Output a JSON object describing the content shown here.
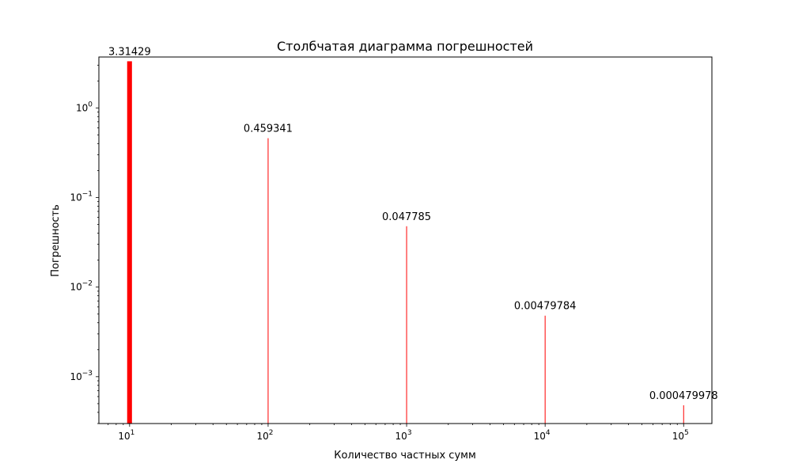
{
  "chart_data": {
    "type": "bar",
    "title": "Столбчатая диаграмма погрешностей",
    "xlabel": "Количество частных сумм",
    "ylabel": "Погрешность",
    "xscale": "log",
    "yscale": "log",
    "xlim": [
      6,
      160000
    ],
    "ylim": [
      0.0003,
      3.7
    ],
    "x": [
      10,
      100,
      1000,
      10000,
      100000
    ],
    "values": [
      3.31429,
      0.459341,
      0.047785,
      0.00479784,
      0.000479978
    ],
    "data_labels": [
      "3.31429",
      "0.459341",
      "0.047785",
      "0.00479784",
      "0.000479978"
    ],
    "bar_color": "#ff0000",
    "grid": false,
    "x_ticks": [
      {
        "value": 10,
        "base": "10",
        "exp": "1"
      },
      {
        "value": 100,
        "base": "10",
        "exp": "2"
      },
      {
        "value": 1000,
        "base": "10",
        "exp": "3"
      },
      {
        "value": 10000,
        "base": "10",
        "exp": "4"
      },
      {
        "value": 100000,
        "base": "10",
        "exp": "5"
      }
    ],
    "y_ticks": [
      {
        "value": 1,
        "base": "10",
        "exp": "0"
      },
      {
        "value": 0.1,
        "base": "10",
        "exp": "−1"
      },
      {
        "value": 0.01,
        "base": "10",
        "exp": "−2"
      },
      {
        "value": 0.001,
        "base": "10",
        "exp": "−3"
      }
    ]
  }
}
